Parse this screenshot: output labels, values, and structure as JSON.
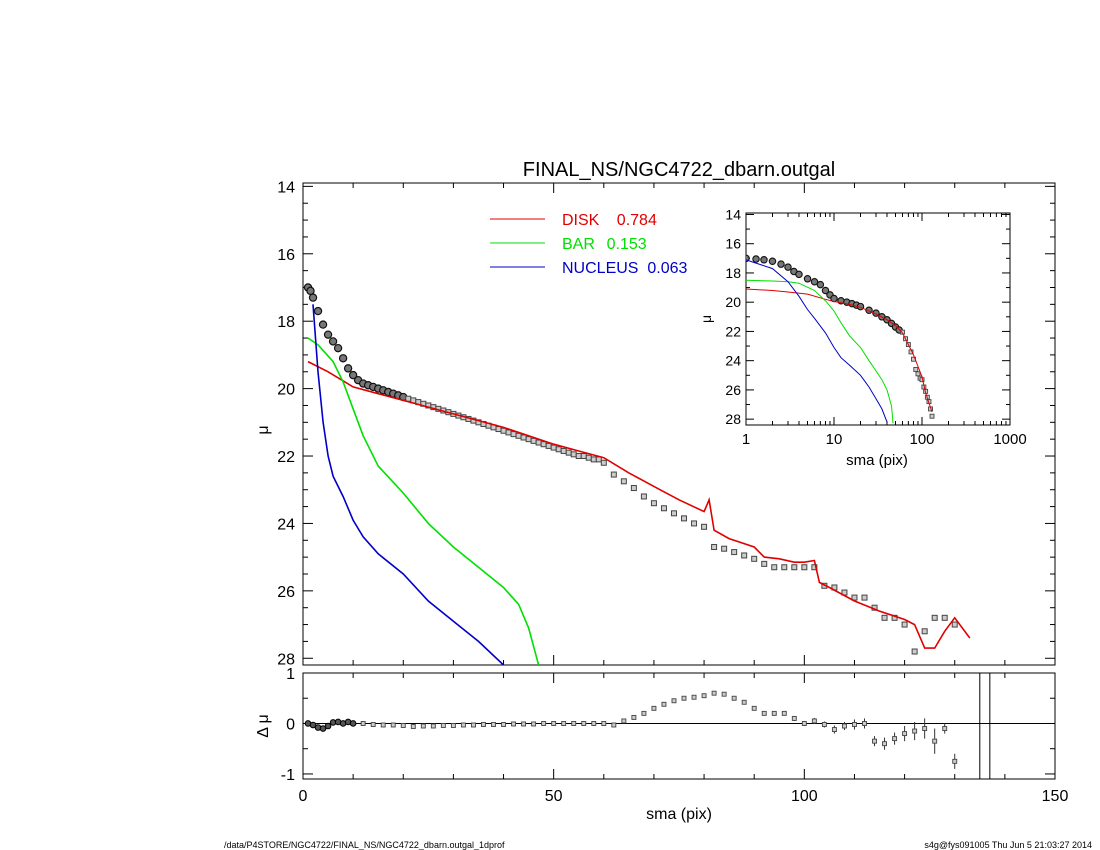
{
  "footer": {
    "left": "/data/P4STORE/NGC4722/FINAL_NS/NGC4722_dbarn.outgal_1dprof",
    "right": "s4g@fys091005  Thu Jun  5 21:03:27 2014"
  },
  "colors": {
    "disk": "#e00000",
    "bar": "#00e000",
    "nucleus": "#0000c8",
    "data": "#000000"
  },
  "chart_data": [
    {
      "id": "main",
      "type": "line",
      "title": "FINAL_NS/NGC4722_dbarn.outgal",
      "xlabel": "",
      "ylabel": "μ",
      "xlim": [
        0,
        150
      ],
      "ylim": [
        28.2,
        13.9
      ],
      "y_inverted": true,
      "yticks": [
        14,
        16,
        18,
        20,
        22,
        24,
        26,
        28
      ],
      "legend": [
        {
          "name": "DISK",
          "value": "0.784",
          "color": "#e00000"
        },
        {
          "name": "BAR",
          "value": "0.153",
          "color": "#00e000"
        },
        {
          "name": "NUCLEUS",
          "value": "0.063",
          "color": "#0000c8"
        }
      ],
      "series": [
        {
          "name": "DISK",
          "color": "#e00000",
          "x": [
            1,
            5,
            10,
            15,
            20,
            25,
            30,
            35,
            40,
            45,
            50,
            55,
            60,
            65,
            70,
            75,
            80,
            81,
            82,
            85,
            90,
            92,
            95,
            98,
            100,
            102,
            103,
            105,
            110,
            115,
            120,
            122,
            124,
            126,
            128,
            130,
            133
          ],
          "y": [
            19.2,
            19.5,
            19.95,
            20.15,
            20.35,
            20.55,
            20.75,
            20.95,
            21.15,
            21.4,
            21.65,
            21.85,
            22.05,
            22.5,
            22.9,
            23.3,
            23.65,
            23.3,
            24.2,
            24.45,
            24.7,
            25.0,
            25.05,
            25.15,
            25.15,
            25.1,
            25.75,
            25.9,
            26.3,
            26.6,
            26.85,
            27.0,
            27.7,
            27.7,
            27.2,
            26.8,
            27.4
          ]
        },
        {
          "name": "BAR",
          "color": "#00e000",
          "x": [
            1,
            3,
            6,
            8,
            10,
            12,
            15,
            20,
            25,
            30,
            35,
            40,
            43,
            45,
            47
          ],
          "y": [
            18.5,
            18.7,
            19.2,
            19.8,
            20.6,
            21.4,
            22.3,
            23.1,
            24.0,
            24.7,
            25.3,
            25.9,
            26.4,
            27.1,
            28.2
          ]
        },
        {
          "name": "NUCLEUS",
          "color": "#0000c8",
          "x": [
            2,
            3,
            4,
            5,
            6,
            8,
            10,
            12,
            15,
            20,
            25,
            30,
            35,
            40
          ],
          "y": [
            17.5,
            19.5,
            21.0,
            22.0,
            22.6,
            23.2,
            23.9,
            24.4,
            24.9,
            25.5,
            26.3,
            26.9,
            27.5,
            28.2
          ]
        }
      ],
      "data_points": {
        "x": [
          1,
          1.5,
          2,
          3,
          4,
          5,
          6,
          7,
          8,
          9,
          10,
          11,
          12,
          13,
          14,
          15,
          16,
          17,
          18,
          19,
          20,
          21,
          22,
          23,
          24,
          25,
          26,
          27,
          28,
          29,
          30,
          31,
          32,
          33,
          34,
          35,
          36,
          37,
          38,
          39,
          40,
          41,
          42,
          43,
          44,
          45,
          46,
          47,
          48,
          49,
          50,
          51,
          52,
          53,
          54,
          55,
          56,
          57,
          58,
          59,
          60,
          62,
          64,
          66,
          68,
          70,
          72,
          74,
          76,
          78,
          80,
          82,
          84,
          86,
          88,
          90,
          92,
          94,
          96,
          98,
          100,
          102,
          104,
          106,
          108,
          110,
          112,
          114,
          116,
          118,
          120,
          122,
          124,
          126,
          128,
          130
        ],
        "y": [
          17.0,
          17.1,
          17.3,
          17.7,
          18.1,
          18.4,
          18.6,
          18.8,
          19.1,
          19.4,
          19.6,
          19.75,
          19.85,
          19.9,
          19.95,
          20.0,
          20.05,
          20.1,
          20.15,
          20.2,
          20.25,
          20.3,
          20.35,
          20.4,
          20.45,
          20.5,
          20.55,
          20.6,
          20.65,
          20.7,
          20.75,
          20.8,
          20.85,
          20.9,
          20.95,
          21.0,
          21.05,
          21.1,
          21.15,
          21.2,
          21.25,
          21.3,
          21.35,
          21.4,
          21.45,
          21.5,
          21.55,
          21.6,
          21.65,
          21.7,
          21.75,
          21.8,
          21.85,
          21.9,
          21.95,
          22.0,
          22.0,
          22.05,
          22.1,
          22.1,
          22.2,
          22.55,
          22.75,
          22.95,
          23.2,
          23.4,
          23.55,
          23.7,
          23.85,
          24.0,
          24.1,
          24.7,
          24.75,
          24.85,
          24.95,
          25.05,
          25.2,
          25.3,
          25.3,
          25.3,
          25.3,
          25.3,
          25.85,
          25.9,
          26.05,
          26.2,
          26.2,
          26.5,
          26.8,
          26.8,
          27.0,
          27.8,
          27.2,
          26.8,
          26.8,
          27.0
        ]
      }
    },
    {
      "id": "residual",
      "type": "scatter",
      "xlabel": "sma (pix)",
      "ylabel": "Δ μ",
      "xlim": [
        0,
        150
      ],
      "ylim": [
        -1.1,
        1.0
      ],
      "xticks": [
        0,
        50,
        100,
        150
      ],
      "yticks": [
        -1,
        0,
        1
      ],
      "vlines": [
        135,
        137
      ],
      "points": {
        "x": [
          1,
          2,
          3,
          4,
          5,
          6,
          7,
          8,
          9,
          10,
          12,
          14,
          16,
          18,
          20,
          22,
          24,
          26,
          28,
          30,
          32,
          34,
          36,
          38,
          40,
          42,
          44,
          46,
          48,
          50,
          52,
          54,
          56,
          58,
          60,
          62,
          64,
          66,
          68,
          70,
          72,
          74,
          76,
          78,
          80,
          82,
          84,
          86,
          88,
          90,
          92,
          94,
          96,
          98,
          100,
          102,
          104,
          106,
          108,
          110,
          112,
          114,
          116,
          118,
          120,
          122,
          124,
          126,
          128,
          130
        ],
        "y": [
          0.0,
          -0.03,
          -0.08,
          -0.1,
          -0.05,
          0.02,
          0.03,
          0.0,
          0.03,
          0.0,
          0.0,
          -0.02,
          -0.03,
          -0.03,
          -0.04,
          -0.06,
          -0.05,
          -0.05,
          -0.04,
          -0.04,
          -0.03,
          -0.03,
          -0.02,
          -0.02,
          -0.02,
          -0.01,
          -0.01,
          -0.01,
          0.0,
          0.0,
          0.0,
          0.0,
          0.0,
          0.0,
          0.0,
          -0.03,
          0.05,
          0.12,
          0.2,
          0.3,
          0.38,
          0.45,
          0.5,
          0.52,
          0.55,
          0.6,
          0.58,
          0.5,
          0.42,
          0.3,
          0.2,
          0.2,
          0.2,
          0.1,
          0.0,
          0.05,
          -0.02,
          -0.12,
          -0.05,
          -0.02,
          0.0,
          -0.35,
          -0.4,
          -0.3,
          -0.2,
          -0.15,
          -0.1,
          -0.35,
          -0.1,
          -0.75
        ],
        "err": [
          0,
          0,
          0,
          0,
          0,
          0,
          0,
          0,
          0,
          0,
          0,
          0,
          0,
          0,
          0,
          0,
          0,
          0,
          0,
          0,
          0,
          0,
          0,
          0,
          0,
          0,
          0,
          0,
          0,
          0,
          0,
          0,
          0,
          0,
          0,
          0,
          0,
          0,
          0,
          0,
          0,
          0,
          0,
          0,
          0,
          0,
          0,
          0,
          0,
          0,
          0,
          0,
          0.03,
          0.05,
          0.05,
          0.06,
          0.06,
          0.08,
          0.08,
          0.1,
          0.1,
          0.1,
          0.12,
          0.12,
          0.15,
          0.18,
          0.2,
          0.25,
          0.1,
          0.15
        ]
      }
    },
    {
      "id": "inset",
      "type": "line",
      "xlabel": "sma (pix)",
      "ylabel": "μ",
      "xscale": "log",
      "xlim": [
        1,
        1000
      ],
      "ylim": [
        28.4,
        13.9
      ],
      "y_inverted": true,
      "xticks": [
        1,
        10,
        100,
        1000
      ],
      "xticklabels": [
        "1",
        "10",
        "100",
        "1000"
      ],
      "yticks": [
        14,
        16,
        18,
        20,
        22,
        24,
        26,
        28
      ],
      "series": [
        {
          "name": "DISK",
          "color": "#e00000",
          "x": [
            1,
            2,
            3,
            5,
            8,
            10,
            15,
            20,
            30,
            40,
            50,
            60,
            70,
            80,
            90,
            100,
            110,
            120,
            130
          ],
          "y": [
            19.1,
            19.2,
            19.3,
            19.45,
            19.8,
            19.95,
            20.15,
            20.35,
            20.8,
            21.2,
            21.6,
            22.1,
            22.9,
            23.6,
            24.4,
            25.1,
            26.2,
            26.9,
            27.5
          ]
        },
        {
          "name": "BAR",
          "color": "#00e000",
          "x": [
            1,
            2,
            3,
            4,
            6,
            8,
            10,
            12,
            15,
            20,
            25,
            30,
            35,
            40,
            45,
            47
          ],
          "y": [
            18.5,
            18.55,
            18.6,
            18.7,
            19.2,
            19.9,
            20.6,
            21.4,
            22.3,
            23.1,
            24.0,
            24.7,
            25.3,
            26.0,
            27.1,
            28.3
          ]
        },
        {
          "name": "NUCLEUS",
          "color": "#0000c8",
          "x": [
            1,
            2,
            3,
            4,
            5,
            6,
            8,
            10,
            12,
            15,
            20,
            25,
            30,
            35,
            40
          ],
          "y": [
            17.1,
            17.7,
            18.6,
            19.6,
            20.5,
            21.1,
            22.1,
            23.1,
            23.8,
            24.3,
            25.0,
            25.8,
            26.6,
            27.3,
            28.2
          ]
        }
      ],
      "data_points": {
        "x": [
          1,
          1.3,
          1.6,
          2,
          2.5,
          3,
          3.5,
          4,
          5,
          6,
          7,
          8,
          9,
          10,
          12,
          14,
          16,
          18,
          20,
          25,
          30,
          35,
          40,
          45,
          50,
          55,
          60,
          65,
          70,
          75,
          80,
          85,
          90,
          95,
          100,
          105,
          110,
          115,
          120,
          125,
          130
        ],
        "y": [
          17.0,
          17.05,
          17.1,
          17.2,
          17.4,
          17.6,
          17.9,
          18.1,
          18.4,
          18.6,
          18.8,
          19.2,
          19.5,
          19.75,
          19.9,
          20.0,
          20.1,
          20.2,
          20.3,
          20.55,
          20.75,
          21.0,
          21.2,
          21.45,
          21.7,
          21.9,
          22.05,
          22.5,
          22.9,
          23.4,
          23.9,
          24.6,
          24.9,
          25.2,
          25.3,
          25.8,
          26.1,
          26.5,
          26.8,
          27.3,
          27.8
        ]
      }
    }
  ]
}
